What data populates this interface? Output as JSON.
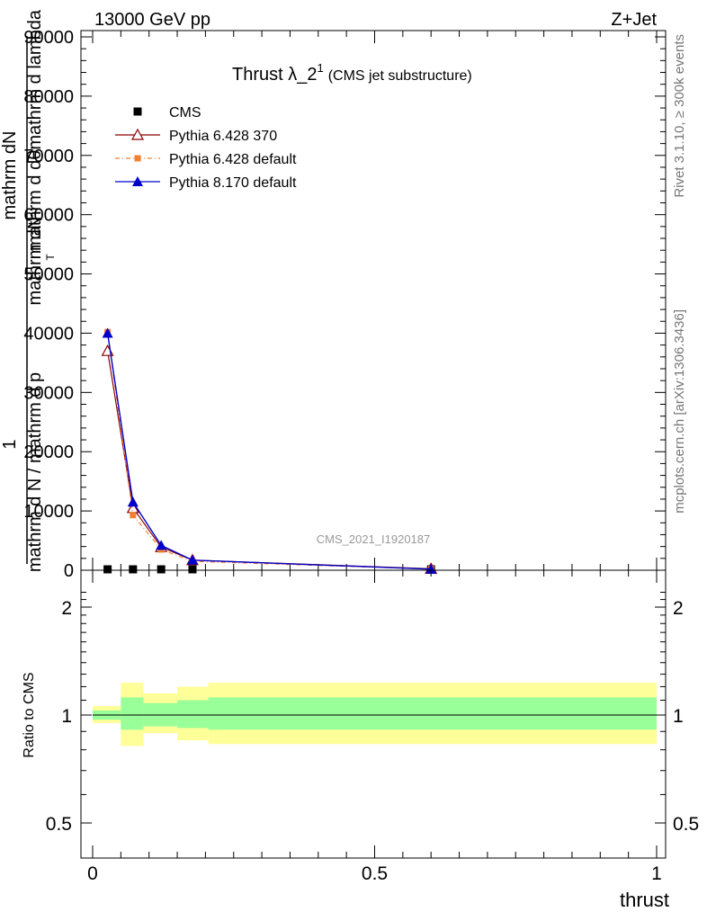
{
  "header": {
    "energy_label": "13000 GeV pp",
    "process_label": "Z+Jet"
  },
  "side_text": {
    "rivet": "Rivet 3.1.10, ≥ 300k events",
    "mcplots": "mcplots.cern.ch [arXiv:1306.3436]"
  },
  "colors": {
    "cms": "#000000",
    "p6_370": "#8b0000",
    "p6_default": "#f08030",
    "p8_default": "#0000cc",
    "band_inner": "#99ff99",
    "band_outer": "#ffff99"
  },
  "chart_data": [
    {
      "type": "line",
      "title": "Thrust λ_2",
      "title_superscript": "1",
      "subtitle": "(CMS jet substructure)",
      "watermark": "CMS_2021_I1920187",
      "ylabel_fragments": [
        "1",
        "mathrm d N",
        "mathrm dN",
        "mathrm d p",
        "mathrm d lambda",
        "mathrm d N / mathrm d p",
        "mathrm d dθmathrm d lambda",
        "T"
      ],
      "xlim": [
        0,
        1
      ],
      "ylim": [
        0,
        91000
      ],
      "yticks": [
        0,
        10000,
        20000,
        30000,
        40000,
        50000,
        60000,
        70000,
        80000,
        90000
      ],
      "ytick_labels": [
        "0",
        "10000",
        "20000",
        "30000",
        "40000",
        "50000",
        "60000",
        "70000",
        "80000",
        "90000"
      ],
      "legend_position": "top-left",
      "series": [
        {
          "name": "CMS",
          "marker": "square",
          "x": [
            0.0265,
            0.0715,
            0.1215,
            0.177,
            0.6
          ],
          "y": [
            0,
            0,
            0,
            0,
            0
          ]
        },
        {
          "name": "Pythia 6.428 370",
          "marker": "open-triangle",
          "x": [
            0.0265,
            0.0715,
            0.1215,
            0.177,
            0.6
          ],
          "y": [
            37000,
            10500,
            3900,
            1700,
            250
          ]
        },
        {
          "name": "Pythia 6.428 default",
          "marker": "small-square",
          "x": [
            0.0265,
            0.0715,
            0.1215,
            0.177,
            0.6
          ],
          "y": [
            40200,
            9300,
            3500,
            1500,
            200
          ]
        },
        {
          "name": "Pythia 8.170 default",
          "marker": "triangle",
          "x": [
            0.0265,
            0.0715,
            0.1215,
            0.177,
            0.6
          ],
          "y": [
            40000,
            11500,
            4200,
            1700,
            180
          ]
        }
      ]
    },
    {
      "type": "area",
      "ylabel": "Ratio to CMS",
      "xlabel": "thrust",
      "xlim": [
        0,
        1
      ],
      "ylim": [
        0.42,
        2.3
      ],
      "log_y": true,
      "xticks": [
        0,
        0.5,
        1
      ],
      "xtick_labels": [
        "0",
        "0.5",
        "1"
      ],
      "yticks": [
        0.5,
        1,
        2
      ],
      "ytick_labels": [
        "0.5",
        "1",
        "2"
      ],
      "bins": [
        {
          "x0": 0.0,
          "x1": 0.05,
          "inner": [
            0.97,
            1.03
          ],
          "outer": [
            0.95,
            1.06
          ]
        },
        {
          "x0": 0.05,
          "x1": 0.09,
          "inner": [
            0.91,
            1.12
          ],
          "outer": [
            0.82,
            1.23
          ]
        },
        {
          "x0": 0.09,
          "x1": 0.15,
          "inner": [
            0.93,
            1.08
          ],
          "outer": [
            0.89,
            1.15
          ]
        },
        {
          "x0": 0.15,
          "x1": 0.205,
          "inner": [
            0.92,
            1.1
          ],
          "outer": [
            0.85,
            1.2
          ]
        },
        {
          "x0": 0.205,
          "x1": 1.0,
          "inner": [
            0.91,
            1.12
          ],
          "outer": [
            0.83,
            1.23
          ]
        }
      ]
    }
  ]
}
